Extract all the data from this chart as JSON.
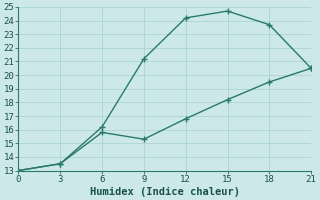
{
  "xlabel": "Humidex (Indice chaleur)",
  "line1_x": [
    0,
    3,
    6,
    9,
    12,
    15,
    18,
    21
  ],
  "line1_y": [
    13,
    13.5,
    16.2,
    21.2,
    24.2,
    24.7,
    23.7,
    20.5
  ],
  "line2_x": [
    0,
    3,
    6,
    9,
    12,
    15,
    18,
    21
  ],
  "line2_y": [
    13,
    13.5,
    15.8,
    15.3,
    16.8,
    18.2,
    19.5,
    20.5
  ],
  "color": "#2a7a6a",
  "bg_color": "#cce8e8",
  "grid_color": "#aad4d4",
  "xlim": [
    0,
    21
  ],
  "ylim": [
    13,
    25
  ],
  "xticks": [
    0,
    3,
    6,
    9,
    12,
    15,
    18,
    21
  ],
  "yticks": [
    13,
    14,
    15,
    16,
    17,
    18,
    19,
    20,
    21,
    22,
    23,
    24,
    25
  ],
  "markersize": 4,
  "linewidth": 1.0,
  "tick_fontsize": 6.5,
  "xlabel_fontsize": 7.5
}
